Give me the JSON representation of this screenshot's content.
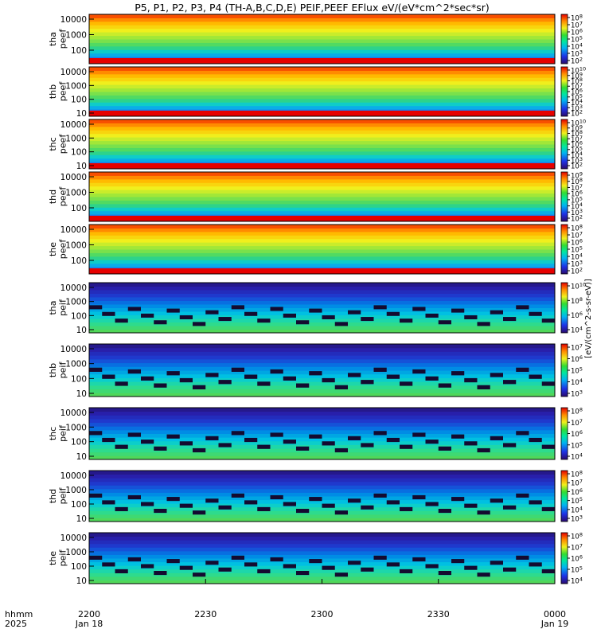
{
  "chart_data": {
    "type": "heatmap",
    "title": "P5, P1, P2, P3, P4 (TH-A,B,C,D,E) PEIF,PEEF EFlux eV/(eV*cm^2*sec*sr)",
    "x": {
      "ticks": [
        "2200",
        "2230",
        "2300",
        "2330",
        "0000"
      ],
      "date_labels": [
        "Jan 18",
        "",
        "",
        "",
        "Jan 19"
      ],
      "row_label": "hhmm",
      "year_label": "2025"
    },
    "colorbar_unit": "[eV/(cm^2-s-sr-eV)]",
    "panels": [
      {
        "label1": "tha",
        "label2": "peef",
        "yticks": [
          "10000",
          "1000",
          "100"
        ],
        "cbticks": [
          "10^8",
          "10^7",
          "10^6",
          "10^5",
          "10^4",
          "10^3",
          "10^2"
        ]
      },
      {
        "label1": "thb",
        "label2": "peef",
        "yticks": [
          "10000",
          "1000",
          "100",
          "10"
        ],
        "cbticks": [
          "10^10",
          "10^9",
          "10^8",
          "10^7",
          "10^6",
          "10^5",
          "10^4",
          "10^3",
          "10^2"
        ]
      },
      {
        "label1": "thc",
        "label2": "peef",
        "yticks": [
          "10000",
          "1000",
          "100",
          "10"
        ],
        "cbticks": [
          "10^10",
          "10^9",
          "10^8",
          "10^7",
          "10^6",
          "10^5",
          "10^4",
          "10^3",
          "10^2"
        ]
      },
      {
        "label1": "thd",
        "label2": "peef",
        "yticks": [
          "10000",
          "1000",
          "100"
        ],
        "cbticks": [
          "10^9",
          "10^8",
          "10^7",
          "10^6",
          "10^5",
          "10^4",
          "10^3",
          "10^2"
        ]
      },
      {
        "label1": "the",
        "label2": "peef",
        "yticks": [
          "10000",
          "1000",
          "100"
        ],
        "cbticks": [
          "10^8",
          "10^7",
          "10^6",
          "10^5",
          "10^4",
          "10^3",
          "10^2"
        ]
      },
      {
        "label1": "tha",
        "label2": "peif",
        "yticks": [
          "10000",
          "1000",
          "100",
          "10"
        ],
        "cbticks": [
          "10^10",
          "10^8",
          "10^6",
          "10^4"
        ]
      },
      {
        "label1": "thb",
        "label2": "peif",
        "yticks": [
          "10000",
          "1000",
          "100",
          "10"
        ],
        "cbticks": [
          "10^7",
          "10^6",
          "10^5",
          "10^4",
          "10^3"
        ]
      },
      {
        "label1": "thc",
        "label2": "peif",
        "yticks": [
          "10000",
          "1000",
          "100",
          "10"
        ],
        "cbticks": [
          "10^8",
          "10^7",
          "10^6",
          "10^5",
          "10^4"
        ]
      },
      {
        "label1": "thd",
        "label2": "peif",
        "yticks": [
          "10000",
          "1000",
          "100",
          "10"
        ],
        "cbticks": [
          "10^8",
          "10^7",
          "10^6",
          "10^5",
          "10^4",
          "10^3"
        ]
      },
      {
        "label1": "the",
        "label2": "peif",
        "yticks": [
          "10000",
          "1000",
          "100",
          "10"
        ],
        "cbticks": [
          "10^8",
          "10^7",
          "10^6",
          "10^5",
          "10^4"
        ]
      }
    ]
  }
}
